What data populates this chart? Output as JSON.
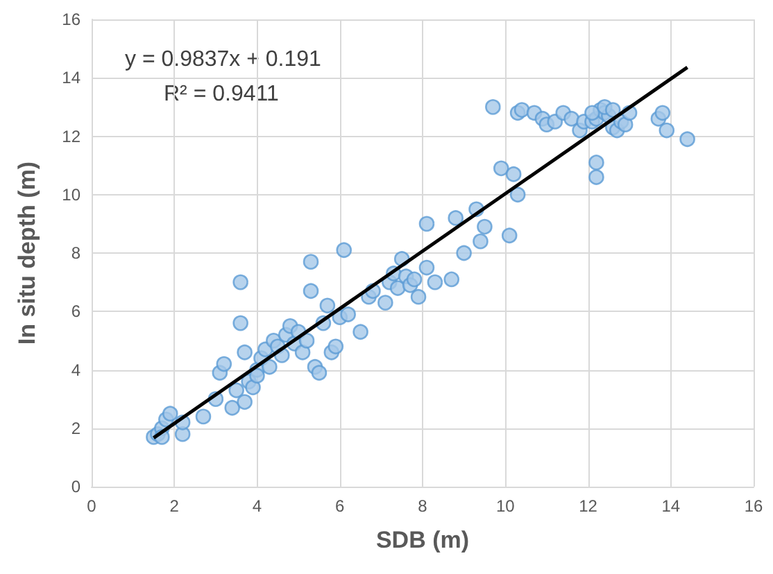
{
  "chart_data": {
    "type": "scatter",
    "xlabel": "SDB (m)",
    "ylabel": "In situ depth (m)",
    "xlim": [
      0,
      16
    ],
    "xticks": [
      0,
      2,
      4,
      6,
      8,
      10,
      12,
      14,
      16
    ],
    "ylim": [
      0,
      16
    ],
    "yticks": [
      0,
      2,
      4,
      6,
      8,
      10,
      12,
      14,
      16
    ],
    "grid": true,
    "marker": "circle",
    "annotations": [
      "y = 0.9837x + 0.191",
      "R² = 0.9411"
    ],
    "series": [
      {
        "color": "#5b9bd5",
        "x": [
          1.5,
          1.6,
          1.7,
          1.8,
          1.9,
          1.7,
          2.2,
          2.2,
          2.7,
          3.1,
          3.2,
          3.0,
          3.4,
          3.5,
          3.6,
          3.6,
          3.7,
          3.7,
          3.8,
          3.9,
          4.0,
          4.1,
          4.0,
          4.2,
          4.3,
          4.4,
          4.5,
          4.6,
          4.7,
          4.8,
          4.9,
          5.0,
          5.1,
          5.2,
          5.3,
          5.3,
          5.4,
          5.5,
          5.6,
          5.7,
          5.8,
          5.9,
          6.0,
          6.1,
          6.2,
          6.5,
          6.7,
          6.8,
          7.1,
          7.2,
          7.3,
          7.4,
          7.5,
          7.6,
          7.7,
          7.8,
          7.9,
          8.1,
          8.1,
          8.3,
          8.7,
          8.8,
          9.0,
          9.3,
          9.4,
          9.5,
          9.7,
          9.9,
          10.1,
          10.2,
          10.3,
          10.3,
          10.4,
          10.7,
          10.9,
          11.0,
          11.2,
          11.4,
          11.6,
          11.8,
          11.9,
          12.1,
          12.2,
          12.2,
          12.2,
          12.3,
          12.4,
          12.5,
          12.6,
          12.7,
          12.8,
          12.9,
          13.0,
          13.7,
          13.8,
          13.9,
          14.4,
          12.1,
          12.4,
          12.6
        ],
        "values": [
          1.7,
          1.8,
          2.0,
          2.3,
          2.5,
          1.7,
          1.8,
          2.2,
          2.4,
          3.9,
          4.2,
          3.0,
          2.7,
          3.3,
          7.0,
          5.6,
          4.6,
          2.9,
          3.6,
          3.4,
          4.0,
          4.4,
          3.8,
          4.7,
          4.1,
          5.0,
          4.8,
          4.5,
          5.2,
          5.5,
          4.9,
          5.3,
          4.6,
          5.0,
          7.7,
          6.7,
          4.1,
          3.9,
          5.6,
          6.2,
          4.6,
          4.8,
          5.8,
          8.1,
          5.9,
          5.3,
          6.5,
          6.7,
          6.3,
          7.0,
          7.3,
          6.8,
          7.8,
          7.2,
          6.9,
          7.1,
          6.5,
          7.5,
          9.0,
          7.0,
          7.1,
          9.2,
          8.0,
          9.5,
          8.4,
          8.9,
          13.0,
          10.9,
          8.6,
          10.7,
          10.0,
          12.8,
          12.9,
          12.8,
          12.6,
          12.4,
          12.5,
          12.8,
          12.6,
          12.2,
          12.5,
          12.5,
          12.6,
          11.1,
          10.6,
          12.9,
          12.8,
          12.7,
          12.3,
          12.2,
          12.5,
          12.4,
          12.8,
          12.6,
          12.8,
          12.2,
          11.9,
          12.8,
          13.0,
          12.9
        ]
      },
      {
        "type": "line",
        "color": "#000000",
        "marker": "none",
        "x": [
          1.5,
          14.4
        ],
        "values": [
          1.67,
          14.36
        ]
      }
    ]
  }
}
